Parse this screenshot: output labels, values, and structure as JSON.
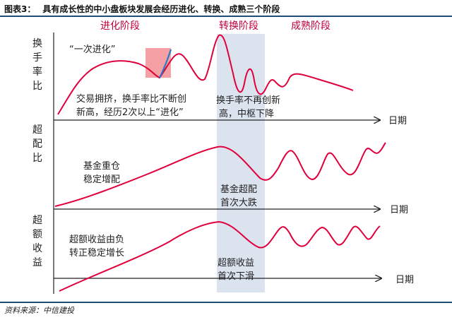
{
  "figure": {
    "number": "图表3：",
    "title": "具有成长性的中小盘板块发展会经历进化、转换、成熟三个阶段",
    "source": "资料来源：中信建投"
  },
  "stages": [
    "进化阶段",
    "转换阶段",
    "成熟阶段"
  ],
  "panels": [
    {
      "ylabel": [
        "换",
        "手",
        "率",
        "比"
      ],
      "xlabel": "日期",
      "annotations": [
        [
          "“一次进化”"
        ],
        [
          "交易拥挤，换手率比不断创",
          "新高，经历2次以上“进化”"
        ],
        [
          "换手率不再创新",
          "高，中枢下降"
        ]
      ]
    },
    {
      "ylabel": [
        "超",
        "配",
        "比"
      ],
      "xlabel": "日期",
      "annotations": [
        [
          "基金重仓",
          "稳定增配"
        ],
        [
          "基金超配",
          "首次大跌"
        ]
      ]
    },
    {
      "ylabel": [
        "超",
        "额",
        "收",
        "益"
      ],
      "xlabel": "日期",
      "annotations": [
        [
          "超额收益由负",
          "转正稳定增长"
        ],
        [
          "超额收益",
          "首次下滑"
        ]
      ]
    }
  ],
  "colors": {
    "curve": "#e0003c",
    "highlight_curve": "#2e7bc4",
    "highlight_box": "#f4a0a4",
    "transition_band": "#dbe3ef",
    "stage_text": "#c0003c",
    "rule": "#1f4e79"
  }
}
